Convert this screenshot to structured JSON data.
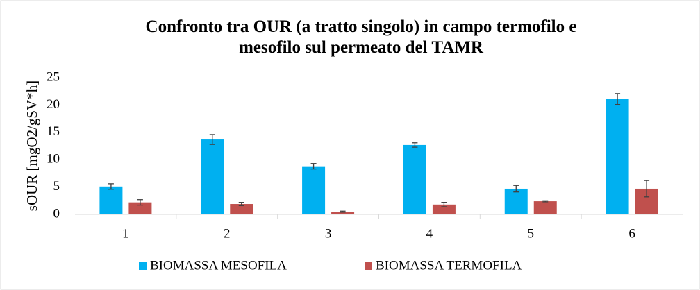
{
  "chart_data": {
    "type": "bar",
    "title": "Confronto tra OUR (a tratto singolo) in campo termofilo e mesofilo sul permeato del TAMR",
    "y_label": "sOUR [mgO2/gSV*h]",
    "categories": [
      "1",
      "2",
      "3",
      "4",
      "5",
      "6"
    ],
    "series": [
      {
        "name": "BIOMASSA MESOFILA",
        "color": "#00b0f0",
        "values": [
          5.1,
          13.7,
          8.8,
          12.7,
          4.7,
          21.1
        ],
        "errors": [
          0.5,
          0.9,
          0.5,
          0.4,
          0.6,
          1.0
        ]
      },
      {
        "name": "BIOMASSA TERMOFILA",
        "color": "#c0504d",
        "values": [
          2.2,
          1.9,
          0.5,
          1.8,
          2.4,
          4.7
        ],
        "errors": [
          0.5,
          0.3,
          0.1,
          0.4,
          0.1,
          1.5
        ]
      }
    ],
    "ylim": [
      0,
      25
    ],
    "yticks": [
      0,
      5,
      10,
      15,
      20,
      25
    ],
    "grid": false,
    "legend": "bottom"
  }
}
